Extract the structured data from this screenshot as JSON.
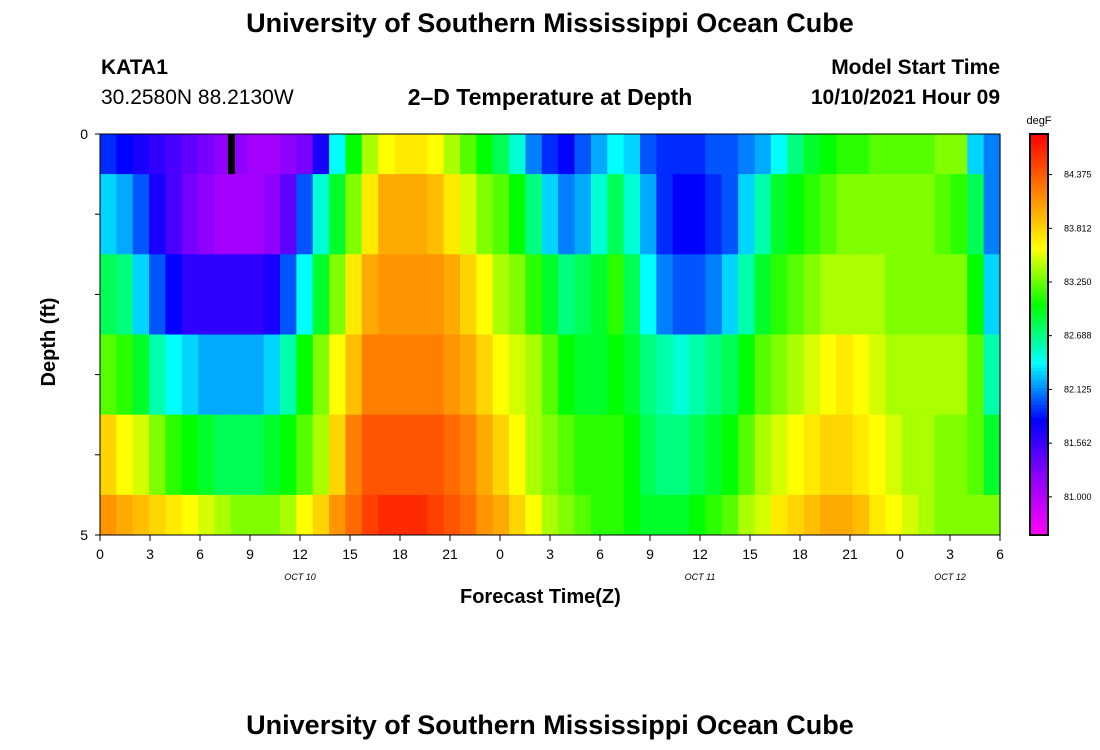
{
  "titles": {
    "top": "University of Southern Mississippi Ocean Cube",
    "bottom": "University of Southern Mississippi Ocean Cube"
  },
  "station": {
    "id": "KATA1",
    "coords": "30.2580N  88.2130W"
  },
  "model_start": {
    "label": "Model Start Time",
    "value": "10/10/2021 Hour 09"
  },
  "chart_data": {
    "type": "heatmap",
    "title": "2–D Temperature at Depth",
    "xlabel": "Forecast Time(Z)",
    "ylabel": "Depth (ft)",
    "x_tick_labels": [
      "0",
      "3",
      "6",
      "9",
      "12",
      "15",
      "18",
      "21",
      "0",
      "3",
      "6",
      "9",
      "12",
      "15",
      "18",
      "21",
      "0",
      "3",
      "6"
    ],
    "date_labels": [
      "OCT 10",
      "OCT 11",
      "OCT 12"
    ],
    "y_tick_labels": [
      "0",
      "5"
    ],
    "ylim": [
      0,
      5
    ],
    "x_hours": [
      0,
      1,
      2,
      3,
      4,
      5,
      6,
      7,
      8,
      9,
      10,
      11,
      12,
      13,
      14,
      15,
      16,
      17,
      18,
      19,
      20,
      21,
      22,
      23,
      24,
      25,
      26,
      27,
      28,
      29,
      30,
      31,
      32,
      33,
      34,
      35,
      36,
      37,
      38,
      39,
      40,
      41,
      42,
      43,
      44,
      45,
      46,
      47,
      48,
      49,
      50,
      51,
      52,
      53,
      54
    ],
    "depth_bands": [
      "0-0.5",
      "0.5-1.5",
      "1.5-2.5",
      "2.5-3.5",
      "3.5-4.5",
      "4.5-5"
    ],
    "values": [
      [
        81.9,
        81.8,
        81.7,
        81.6,
        81.5,
        81.4,
        81.3,
        81.2,
        81.2,
        81.1,
        81.1,
        81.2,
        81.3,
        81.7,
        82.4,
        83.0,
        83.4,
        83.6,
        83.7,
        83.7,
        83.6,
        83.4,
        83.2,
        83.0,
        82.8,
        82.5,
        82.1,
        81.9,
        81.8,
        82.0,
        82.2,
        82.4,
        82.3,
        82.0,
        81.9,
        81.9,
        81.9,
        82.0,
        82.0,
        82.1,
        82.2,
        82.4,
        82.7,
        82.9,
        83.0,
        83.1,
        83.1,
        83.2,
        83.2,
        83.2,
        83.2,
        83.3,
        83.3,
        82.3,
        82.1
      ],
      [
        82.3,
        82.2,
        82.0,
        81.7,
        81.5,
        81.3,
        81.2,
        81.1,
        81.1,
        81.1,
        81.2,
        81.4,
        82.0,
        82.5,
        82.9,
        83.3,
        83.7,
        84.0,
        84.0,
        84.0,
        83.9,
        83.7,
        83.5,
        83.3,
        83.2,
        83.0,
        82.7,
        82.3,
        82.1,
        82.2,
        82.5,
        82.8,
        82.5,
        82.2,
        81.9,
        81.8,
        81.8,
        81.9,
        82.0,
        82.3,
        82.6,
        82.9,
        83.0,
        83.1,
        83.2,
        83.3,
        83.3,
        83.3,
        83.3,
        83.3,
        83.3,
        83.2,
        83.1,
        82.8,
        82.1
      ],
      [
        82.8,
        82.7,
        82.3,
        82.0,
        81.8,
        81.6,
        81.6,
        81.6,
        81.6,
        81.6,
        81.7,
        82.0,
        82.4,
        82.9,
        83.3,
        83.7,
        84.0,
        84.1,
        84.1,
        84.1,
        84.1,
        84.0,
        83.8,
        83.6,
        83.4,
        83.3,
        83.1,
        82.9,
        82.7,
        82.8,
        82.9,
        83.1,
        82.8,
        82.4,
        82.1,
        82.0,
        82.0,
        82.1,
        82.3,
        82.6,
        82.9,
        83.1,
        83.2,
        83.3,
        83.4,
        83.4,
        83.4,
        83.4,
        83.3,
        83.3,
        83.3,
        83.3,
        83.3,
        83.0,
        82.3
      ],
      [
        83.2,
        83.1,
        82.9,
        82.6,
        82.4,
        82.3,
        82.2,
        82.2,
        82.2,
        82.2,
        82.3,
        82.6,
        83.0,
        83.3,
        83.6,
        83.9,
        84.2,
        84.2,
        84.2,
        84.2,
        84.2,
        84.1,
        84.0,
        83.8,
        83.6,
        83.5,
        83.4,
        83.2,
        83.0,
        82.9,
        82.9,
        83.0,
        82.9,
        82.7,
        82.6,
        82.5,
        82.6,
        82.7,
        82.8,
        83.0,
        83.2,
        83.3,
        83.4,
        83.5,
        83.6,
        83.7,
        83.6,
        83.5,
        83.4,
        83.4,
        83.4,
        83.4,
        83.4,
        83.2,
        82.6
      ],
      [
        83.8,
        83.6,
        83.5,
        83.3,
        83.1,
        83.0,
        82.9,
        82.8,
        82.8,
        82.8,
        82.9,
        83.0,
        83.2,
        83.4,
        83.8,
        84.2,
        84.4,
        84.4,
        84.4,
        84.4,
        84.4,
        84.3,
        84.2,
        84.0,
        83.8,
        83.6,
        83.4,
        83.3,
        83.2,
        83.1,
        83.1,
        83.1,
        83.0,
        82.8,
        82.7,
        82.7,
        82.8,
        82.9,
        83.0,
        83.2,
        83.4,
        83.5,
        83.6,
        83.7,
        83.8,
        83.8,
        83.7,
        83.6,
        83.5,
        83.4,
        83.4,
        83.3,
        83.3,
        83.2,
        82.9
      ],
      [
        84.1,
        84.0,
        83.9,
        83.8,
        83.7,
        83.6,
        83.5,
        83.4,
        83.3,
        83.3,
        83.3,
        83.4,
        83.6,
        83.8,
        84.1,
        84.3,
        84.5,
        84.6,
        84.6,
        84.6,
        84.5,
        84.4,
        84.3,
        84.1,
        84.0,
        83.8,
        83.6,
        83.4,
        83.3,
        83.2,
        83.1,
        83.1,
        83.0,
        82.9,
        82.9,
        82.9,
        83.0,
        83.1,
        83.2,
        83.4,
        83.5,
        83.7,
        83.8,
        83.9,
        84.0,
        84.0,
        83.9,
        83.7,
        83.6,
        83.5,
        83.4,
        83.3,
        83.3,
        83.3,
        83.3
      ]
    ],
    "marker": {
      "hour": 8,
      "depth_band": 0,
      "color": "#000000"
    },
    "colorbar": {
      "unit": "degF",
      "min": 80.6,
      "max": 84.8,
      "tick_labels": [
        "84.375",
        "83.812",
        "83.250",
        "82.688",
        "82.125",
        "81.562",
        "81.000"
      ],
      "tick_values": [
        84.375,
        83.812,
        83.25,
        82.688,
        82.125,
        81.562,
        81.0
      ],
      "colormap": [
        "#ff00ff",
        "#9000ff",
        "#0000ff",
        "#00ffff",
        "#00ff00",
        "#ffff00",
        "#ff8000",
        "#ff0000"
      ]
    }
  }
}
